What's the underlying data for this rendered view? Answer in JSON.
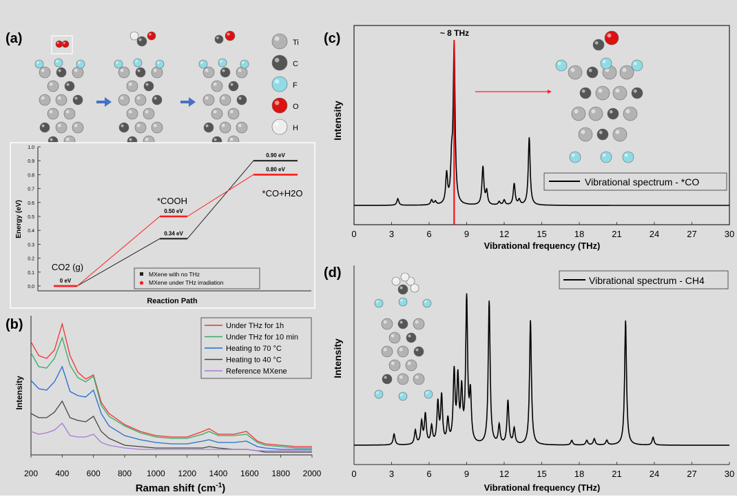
{
  "panel_labels": {
    "a": "(a)",
    "b": "(b)",
    "c": "(c)",
    "d": "(d)"
  },
  "legend_atoms": [
    {
      "label": "Ti",
      "color": "#b3b3b3"
    },
    {
      "label": "C",
      "color": "#555555"
    },
    {
      "label": "F",
      "color": "#8fdbe6"
    },
    {
      "label": "O",
      "color": "#dd1111"
    },
    {
      "label": "H",
      "color": "#eeeeee"
    }
  ],
  "colors": {
    "no_thz": "#222222",
    "thz": "#ff1a1a",
    "arrow": "#4472c4",
    "spectrum": "#000000",
    "marker": "#ff0000"
  },
  "chart_data": [
    {
      "id": "a",
      "type": "line",
      "xlabel": "Reaction Path",
      "ylabel": "Energy (eV)",
      "ylim": [
        0,
        1.0
      ],
      "yticks": [
        "0.0",
        "0.1",
        "0.2",
        "0.3",
        "0.4",
        "0.5",
        "0.6",
        "0.7",
        "0.8",
        "0.9",
        "1.0"
      ],
      "state_labels": [
        "CO2 (g)",
        "*COOH",
        "*CO+H2O"
      ],
      "series": [
        {
          "name": "MXene with no THz",
          "values": [
            0,
            0.34,
            0.9
          ],
          "value_labels": [
            "0 eV",
            "0.34 eV",
            "0.90 eV"
          ]
        },
        {
          "name": "MXene under THz irradiation",
          "values": [
            0,
            0.5,
            0.8
          ],
          "value_labels": [
            "",
            "0.50 eV",
            "0.80 eV"
          ]
        }
      ],
      "legend": "bottom-right"
    },
    {
      "id": "b",
      "type": "line",
      "xlabel": "Raman shift (cm-1)",
      "ylabel": "Intensity",
      "xlim": [
        200,
        2000
      ],
      "xticks": [
        "200",
        "400",
        "600",
        "800",
        "1000",
        "1200",
        "1400",
        "1600",
        "1800",
        "2000"
      ],
      "legend": "top-right",
      "series": [
        {
          "name": "Under THz for 1h",
          "color": "#ee3333",
          "x": [
            200,
            250,
            300,
            350,
            400,
            450,
            500,
            550,
            600,
            650,
            700,
            800,
            900,
            1000,
            1100,
            1200,
            1300,
            1340,
            1400,
            1500,
            1580,
            1650,
            1700,
            1800,
            1900,
            2000
          ],
          "y": [
            0.82,
            0.72,
            0.7,
            0.76,
            0.95,
            0.72,
            0.6,
            0.55,
            0.58,
            0.38,
            0.3,
            0.22,
            0.17,
            0.14,
            0.13,
            0.13,
            0.17,
            0.19,
            0.15,
            0.15,
            0.17,
            0.1,
            0.08,
            0.07,
            0.06,
            0.06
          ]
        },
        {
          "name": "Under THz for 10 min",
          "color": "#33aa66",
          "x": [
            200,
            250,
            300,
            350,
            400,
            450,
            500,
            550,
            600,
            650,
            700,
            800,
            900,
            1000,
            1100,
            1200,
            1300,
            1340,
            1400,
            1500,
            1580,
            1650,
            1700,
            1800,
            1900,
            2000
          ],
          "y": [
            0.74,
            0.64,
            0.63,
            0.7,
            0.85,
            0.65,
            0.56,
            0.53,
            0.57,
            0.36,
            0.28,
            0.21,
            0.16,
            0.13,
            0.12,
            0.12,
            0.15,
            0.17,
            0.14,
            0.14,
            0.15,
            0.09,
            0.07,
            0.06,
            0.05,
            0.05
          ]
        },
        {
          "name": "Heating to 70 °C",
          "color": "#1f6fd1",
          "x": [
            200,
            250,
            300,
            350,
            400,
            450,
            500,
            550,
            600,
            650,
            700,
            800,
            900,
            1000,
            1100,
            1200,
            1300,
            1340,
            1400,
            1500,
            1580,
            1650,
            1700,
            1800,
            1900,
            2000
          ],
          "y": [
            0.54,
            0.48,
            0.47,
            0.53,
            0.64,
            0.46,
            0.43,
            0.42,
            0.47,
            0.3,
            0.21,
            0.14,
            0.11,
            0.09,
            0.08,
            0.08,
            0.1,
            0.11,
            0.09,
            0.09,
            0.1,
            0.06,
            0.05,
            0.04,
            0.04,
            0.04
          ]
        },
        {
          "name": "Heating to 40 °C",
          "color": "#444444",
          "x": [
            200,
            250,
            300,
            350,
            400,
            450,
            500,
            550,
            600,
            650,
            700,
            800,
            900,
            1000,
            1100,
            1200,
            1300,
            1340,
            1400,
            1500,
            1580,
            1650,
            1700,
            1800,
            1900,
            2000
          ],
          "y": [
            0.3,
            0.27,
            0.27,
            0.31,
            0.39,
            0.27,
            0.25,
            0.24,
            0.28,
            0.17,
            0.12,
            0.07,
            0.06,
            0.05,
            0.05,
            0.05,
            0.05,
            0.06,
            0.05,
            0.04,
            0.04,
            0.03,
            0.02,
            0.02,
            0.02,
            0.02
          ]
        },
        {
          "name": "Reference MXene",
          "color": "#a67ad8",
          "x": [
            200,
            250,
            300,
            350,
            400,
            450,
            500,
            550,
            600,
            650,
            700,
            800,
            900,
            1000,
            1100,
            1200,
            1300,
            1340,
            1400,
            1500,
            1580,
            1650,
            1700,
            1800,
            1900,
            2000
          ],
          "y": [
            0.17,
            0.15,
            0.16,
            0.18,
            0.23,
            0.14,
            0.13,
            0.13,
            0.15,
            0.09,
            0.07,
            0.05,
            0.04,
            0.04,
            0.04,
            0.04,
            0.04,
            0.04,
            0.04,
            0.04,
            0.04,
            0.03,
            0.03,
            0.03,
            0.03,
            0.03
          ]
        }
      ]
    },
    {
      "id": "c",
      "type": "line",
      "xlabel": "Vibrational frequency (THz)",
      "ylabel": "Intensity",
      "xlim": [
        0,
        30
      ],
      "xticks": [
        "0",
        "3",
        "6",
        "9",
        "12",
        "15",
        "18",
        "21",
        "24",
        "27",
        "30"
      ],
      "annotation": "~ 8 THz",
      "marker_x": 8,
      "legend": "bottom-right",
      "series": [
        {
          "name": "Vibrational spectrum - *CO",
          "peaks": [
            [
              3.5,
              0.04
            ],
            [
              6.2,
              0.03
            ],
            [
              6.5,
              0.02
            ],
            [
              7.4,
              0.18
            ],
            [
              7.8,
              0.22
            ],
            [
              8.0,
              0.95
            ],
            [
              10.3,
              0.23
            ],
            [
              10.6,
              0.08
            ],
            [
              11.6,
              0.02
            ],
            [
              12.0,
              0.03
            ],
            [
              12.8,
              0.13
            ],
            [
              13.2,
              0.03
            ],
            [
              14.0,
              0.41
            ]
          ]
        }
      ]
    },
    {
      "id": "d",
      "type": "line",
      "xlabel": "Vibrational frequency (THz)",
      "ylabel": "Intensity",
      "xlim": [
        0,
        30
      ],
      "xticks": [
        "0",
        "3",
        "6",
        "9",
        "12",
        "15",
        "18",
        "21",
        "24",
        "27",
        "30"
      ],
      "legend": "top-right",
      "series": [
        {
          "name": "Vibrational spectrum - CH4",
          "peaks": [
            [
              3.2,
              0.07
            ],
            [
              4.9,
              0.09
            ],
            [
              5.4,
              0.14
            ],
            [
              5.7,
              0.19
            ],
            [
              6.2,
              0.11
            ],
            [
              6.7,
              0.26
            ],
            [
              7.0,
              0.3
            ],
            [
              7.5,
              0.15
            ],
            [
              8.0,
              0.45
            ],
            [
              8.3,
              0.4
            ],
            [
              8.6,
              0.32
            ],
            [
              9.0,
              0.92
            ],
            [
              9.3,
              0.3
            ],
            [
              10.8,
              0.92
            ],
            [
              11.6,
              0.12
            ],
            [
              12.3,
              0.28
            ],
            [
              12.8,
              0.1
            ],
            [
              14.1,
              0.8
            ],
            [
              17.4,
              0.03
            ],
            [
              18.6,
              0.03
            ],
            [
              19.2,
              0.04
            ],
            [
              20.2,
              0.03
            ],
            [
              21.7,
              0.8
            ],
            [
              23.9,
              0.05
            ]
          ]
        }
      ]
    }
  ]
}
